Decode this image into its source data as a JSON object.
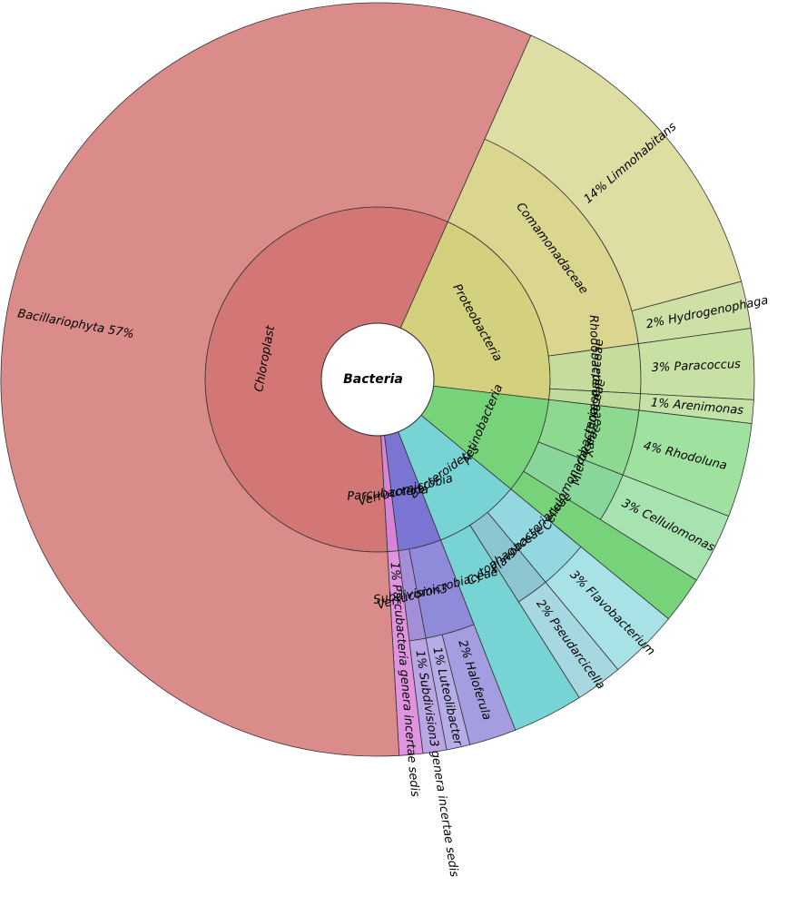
{
  "chart_data": {
    "type": "sunburst",
    "root": "Bacteria",
    "children": [
      {
        "name": "Proteobacteria",
        "color": "#d4d17e",
        "children": [
          {
            "name": "Comamonadaceae",
            "color": "#dad58f",
            "children": [
              {
                "label": "14%  Limnohabitans",
                "value": 14,
                "color": "#dedda3"
              },
              {
                "label": "2%  Hydrogenophaga",
                "value": 2,
                "color": "#cfe0a6"
              }
            ]
          },
          {
            "name": "Rhodobacteraceae",
            "color": "#c5dc9c",
            "children": [
              {
                "label": "3%  Paracoccus",
                "value": 3,
                "color": "#c7e0a3"
              }
            ]
          },
          {
            "name": "Xanthomonadaceae",
            "color": "#bfdc9c",
            "children": [
              {
                "label": "1%  Arenimonas",
                "value": 1,
                "color": "#c4e1a6"
              }
            ]
          }
        ]
      },
      {
        "name": "Actinobacteria",
        "color": "#77d37a",
        "children": [
          {
            "name": "Microbacteriaceae",
            "color": "#8dd98f",
            "children": [
              {
                "label": "4%  Rhodoluna",
                "value": 4,
                "color": "#9fe19f"
              }
            ]
          },
          {
            "name": "Cellulomonadaceae",
            "color": "#88d69a",
            "children": [
              {
                "label": "3%  Cellulomonas",
                "value": 3,
                "color": "#a7e3b1"
              }
            ]
          },
          {
            "label": null,
            "value": 2,
            "color": "#77d37a"
          }
        ]
      },
      {
        "name": "Bacteroidetes",
        "color": "#78d4d4",
        "children": [
          {
            "name": "Flavobacteriaceae",
            "color": "#93d8e0",
            "children": [
              {
                "label": "3%  Flavobacterium",
                "value": 3,
                "color": "#a8e2e6"
              }
            ]
          },
          {
            "name": "Cytophagaceae",
            "color": "#8cc4d0",
            "children": [
              {
                "label": "2%  Pseudarcicella",
                "value": 2,
                "color": "#a7d7e0"
              }
            ]
          },
          {
            "label": null,
            "value": 3,
            "color": "#78d4d4"
          }
        ]
      },
      {
        "name": "Verrucomicrobia",
        "color": "#7a74d3",
        "children": [
          {
            "name": "Verrucomicrobiaceae",
            "color": "#8f8ad9",
            "children": [
              {
                "label": "2%  Haloferula",
                "value": 2,
                "color": "#a49ee0"
              },
              {
                "label": "1%  Luteolibacter",
                "value": 1,
                "color": "#b5aee6"
              }
            ]
          },
          {
            "name": "Subdivision3",
            "color": "#a58ed8",
            "children": [
              {
                "label": "1%  Subdivision3 genera incertae sedis",
                "value": 1,
                "color": "#b9a6e2"
              }
            ]
          }
        ]
      },
      {
        "name": "Parcubacteria",
        "color": "#d684d6",
        "children": [
          {
            "label": "1%  Parcubacteria genera incertae sedis",
            "value": 1,
            "color": "#de94de"
          }
        ]
      },
      {
        "name": "Chloroplast",
        "color": "#d27775",
        "children": [
          {
            "label": "Bacillariophyta  57%",
            "value": 57,
            "color": "#d98c8a"
          }
        ]
      }
    ]
  }
}
